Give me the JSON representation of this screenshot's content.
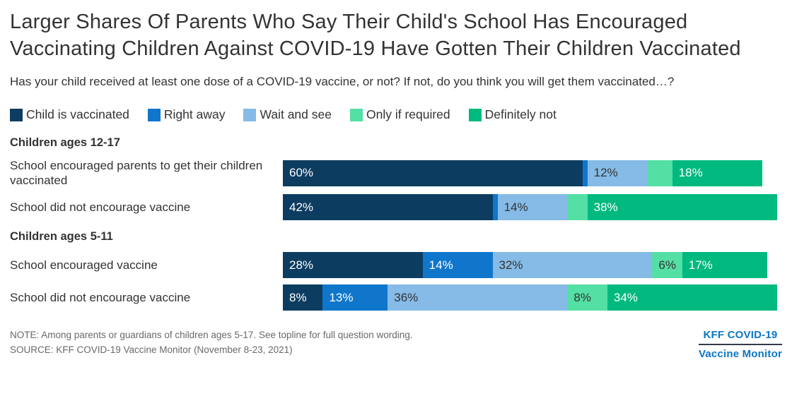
{
  "header": {
    "title": "Larger Shares Of Parents Who Say Their Child's School Has Encouraged Vaccinating Children Against COVID-19 Have Gotten Their Children Vaccinated",
    "subtitle": "Has your child received at least one dose of a COVID-19 vaccine, or not? If not, do you think you will get them vaccinated…?"
  },
  "chart_data": {
    "type": "bar",
    "orientation": "horizontal",
    "stacked": true,
    "unit": "percent",
    "xlim": [
      0,
      100
    ],
    "legend_position": "top",
    "grid": false,
    "series": [
      {
        "name": "Child is vaccinated",
        "color": "#0d3c61",
        "label_color": "#ffffff"
      },
      {
        "name": "Right away",
        "color": "#0f76cc",
        "label_color": "#ffffff"
      },
      {
        "name": "Wait and see",
        "color": "#85bbe6",
        "label_color": "#333333"
      },
      {
        "name": "Only if required",
        "color": "#54dfa4",
        "label_color": "#333333"
      },
      {
        "name": "Definitely not",
        "color": "#00b97f",
        "label_color": "#ffffff"
      }
    ],
    "groups": [
      {
        "label": "Children ages 12-17",
        "rows": [
          {
            "label": "School encouraged parents to get their children vaccinated",
            "values": [
              60,
              1,
              12,
              5,
              18
            ],
            "labels": [
              "60%",
              "",
              "12%",
              "",
              "18%"
            ]
          },
          {
            "label": "School did not encourage vaccine",
            "values": [
              42,
              1,
              14,
              4,
              38
            ],
            "labels": [
              "42%",
              "",
              "14%",
              "",
              "38%"
            ]
          }
        ]
      },
      {
        "label": "Children ages 5-11",
        "rows": [
          {
            "label": "School encouraged vaccine",
            "values": [
              28,
              14,
              32,
              6,
              17
            ],
            "labels": [
              "28%",
              "14%",
              "32%",
              "6%",
              "17%"
            ]
          },
          {
            "label": "School did not encourage vaccine",
            "values": [
              8,
              13,
              36,
              8,
              34
            ],
            "labels": [
              "8%",
              "13%",
              "36%",
              "8%",
              "34%"
            ]
          }
        ]
      }
    ]
  },
  "footer": {
    "note": "NOTE: Among parents or guardians of children ages 5-17. See topline for full question wording.",
    "source": "SOURCE: KFF COVID-19 Vaccine Monitor (November 8-23, 2021)",
    "logo_line1": "KFF COVID-19",
    "logo_line2": "Vaccine Monitor"
  }
}
